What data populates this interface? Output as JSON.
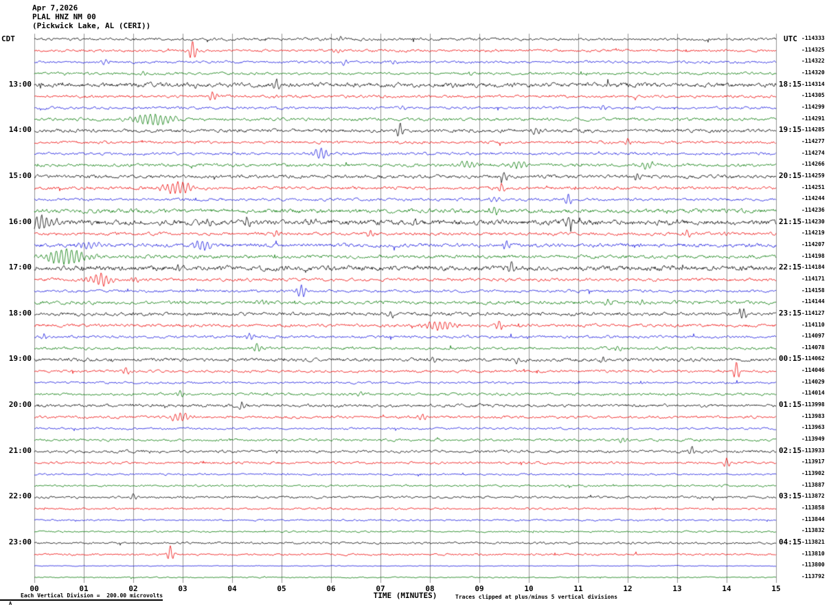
{
  "header": {
    "date": "Apr 7,2026",
    "station": "PLAL HNZ NM 00",
    "location": "(Pickwick Lake, AL (CERI))",
    "left_axis_label": "CDT",
    "right_axis_label": "UTC"
  },
  "footer": {
    "scale_note": "Each Vertical Division =  200.00 microvolts",
    "x_axis_title": "TIME (MINUTES)",
    "clip_note": "Traces clipped at plus/minus 5 vertical divisions",
    "corner_mark": "A"
  },
  "chart_data": {
    "type": "line",
    "subtype": "helicorder-seismogram",
    "xlabel": "TIME (MINUTES)",
    "x_range": [
      0,
      15
    ],
    "minutes_per_line": 15,
    "x_ticks": [
      "00",
      "01",
      "02",
      "03",
      "04",
      "05",
      "06",
      "07",
      "08",
      "09",
      "10",
      "11",
      "12",
      "13",
      "14",
      "15"
    ],
    "colors": {
      "background": "#ffffff",
      "grid": "#909090",
      "traces": [
        "#000000",
        "#ee0000",
        "#1414dd",
        "#007700"
      ]
    },
    "traces": [
      {
        "left_label": "",
        "right_time": "",
        "right_value": "-114333",
        "noise": 1.6,
        "events": [
          [
            6.2,
            3,
            0.06
          ],
          [
            9.0,
            2.5,
            0.05
          ]
        ]
      },
      {
        "left_label": "",
        "right_time": "",
        "right_value": "-114325",
        "noise": 1.5,
        "events": [
          [
            3.2,
            15,
            0.05
          ],
          [
            6.1,
            4,
            0.05
          ]
        ]
      },
      {
        "left_label": "",
        "right_time": "",
        "right_value": "-114322",
        "noise": 1.5,
        "events": [
          [
            1.45,
            4,
            0.06
          ],
          [
            6.3,
            4,
            0.06
          ],
          [
            7.3,
            3.5,
            0.05
          ]
        ]
      },
      {
        "left_label": "",
        "right_time": "",
        "right_value": "-114320",
        "noise": 1.5,
        "events": [
          [
            2.2,
            3.5,
            0.06
          ]
        ]
      },
      {
        "left_label": "13:00",
        "right_time": "18:15",
        "right_value": "-114314",
        "noise": 2.6,
        "events": [
          [
            3.3,
            3,
            0.05
          ],
          [
            4.9,
            9,
            0.05
          ],
          [
            8.5,
            3,
            0.08
          ]
        ]
      },
      {
        "left_label": "",
        "right_time": "",
        "right_value": "-114305",
        "noise": 1.6,
        "events": [
          [
            3.6,
            6,
            0.06
          ],
          [
            4.9,
            4,
            0.05
          ]
        ]
      },
      {
        "left_label": "",
        "right_time": "",
        "right_value": "-114299",
        "noise": 1.5,
        "events": [
          [
            7.45,
            4,
            0.05
          ],
          [
            11.5,
            4,
            0.05
          ]
        ]
      },
      {
        "left_label": "",
        "right_time": "",
        "right_value": "-114291",
        "noise": 1.8,
        "events": [
          [
            2.45,
            8,
            0.3
          ]
        ]
      },
      {
        "left_label": "14:00",
        "right_time": "19:15",
        "right_value": "-114285",
        "noise": 2.0,
        "events": [
          [
            7.4,
            11,
            0.05
          ],
          [
            10.15,
            4,
            0.06
          ]
        ]
      },
      {
        "left_label": "",
        "right_time": "",
        "right_value": "-114277",
        "noise": 1.6,
        "events": [
          [
            12.0,
            5,
            0.06
          ]
        ]
      },
      {
        "left_label": "",
        "right_time": "",
        "right_value": "-114274",
        "noise": 1.6,
        "events": [
          [
            5.8,
            8,
            0.12
          ]
        ]
      },
      {
        "left_label": "",
        "right_time": "",
        "right_value": "-114266",
        "noise": 1.8,
        "events": [
          [
            8.75,
            4.5,
            0.15
          ],
          [
            9.8,
            4.5,
            0.15
          ],
          [
            12.4,
            5,
            0.1
          ]
        ]
      },
      {
        "left_label": "15:00",
        "right_time": "20:15",
        "right_value": "-114259",
        "noise": 2.0,
        "events": [
          [
            9.5,
            7,
            0.06
          ],
          [
            12.2,
            6,
            0.05
          ]
        ]
      },
      {
        "left_label": "",
        "right_time": "",
        "right_value": "-114251",
        "noise": 1.8,
        "events": [
          [
            2.9,
            9,
            0.22
          ],
          [
            9.45,
            6,
            0.05
          ]
        ]
      },
      {
        "left_label": "",
        "right_time": "",
        "right_value": "-114244",
        "noise": 1.6,
        "events": [
          [
            9.3,
            5,
            0.06
          ],
          [
            10.8,
            8,
            0.05
          ]
        ]
      },
      {
        "left_label": "",
        "right_time": "",
        "right_value": "-114236",
        "noise": 2.4,
        "events": [
          [
            9.3,
            5,
            0.08
          ]
        ]
      },
      {
        "left_label": "16:00",
        "right_time": "21:15",
        "right_value": "-114230",
        "noise": 3.0,
        "events": [
          [
            0.15,
            10,
            0.18
          ],
          [
            3.5,
            5,
            0.06
          ],
          [
            4.3,
            6,
            0.05
          ],
          [
            5.6,
            4,
            0.05
          ],
          [
            7.7,
            4,
            0.06
          ],
          [
            10.8,
            7,
            0.06
          ],
          [
            13.0,
            3.5,
            0.06
          ]
        ]
      },
      {
        "left_label": "",
        "right_time": "",
        "right_value": "-114219",
        "noise": 1.8,
        "events": [
          [
            4.9,
            6,
            0.05
          ],
          [
            6.8,
            5,
            0.06
          ],
          [
            13.2,
            6,
            0.05
          ],
          [
            13.95,
            4,
            0.05
          ]
        ]
      },
      {
        "left_label": "",
        "right_time": "",
        "right_value": "-114207",
        "noise": 2.2,
        "events": [
          [
            1.1,
            5,
            0.18
          ],
          [
            3.4,
            7,
            0.12
          ],
          [
            9.55,
            6,
            0.05
          ]
        ]
      },
      {
        "left_label": "",
        "right_time": "",
        "right_value": "-114198",
        "noise": 2.0,
        "events": [
          [
            0.65,
            11,
            0.28
          ]
        ]
      },
      {
        "left_label": "17:00",
        "right_time": "22:15",
        "right_value": "-114184",
        "noise": 3.0,
        "events": [
          [
            2.9,
            4,
            0.08
          ],
          [
            9.65,
            8,
            0.05
          ]
        ]
      },
      {
        "left_label": "",
        "right_time": "",
        "right_value": "-114171",
        "noise": 1.8,
        "events": [
          [
            1.35,
            8,
            0.18
          ],
          [
            2.05,
            5,
            0.05
          ]
        ]
      },
      {
        "left_label": "",
        "right_time": "",
        "right_value": "-114158",
        "noise": 1.6,
        "events": [
          [
            5.4,
            9,
            0.08
          ]
        ]
      },
      {
        "left_label": "",
        "right_time": "",
        "right_value": "-114144",
        "noise": 2.0,
        "events": [
          [
            4.6,
            4,
            0.06
          ],
          [
            11.6,
            3.5,
            0.06
          ],
          [
            12.3,
            3.5,
            0.06
          ]
        ]
      },
      {
        "left_label": "18:00",
        "right_time": "23:15",
        "right_value": "-114127",
        "noise": 2.0,
        "events": [
          [
            7.2,
            4.5,
            0.06
          ],
          [
            14.35,
            7,
            0.05
          ]
        ]
      },
      {
        "left_label": "",
        "right_time": "",
        "right_value": "-114110",
        "noise": 1.8,
        "events": [
          [
            8.2,
            7,
            0.2
          ],
          [
            9.4,
            8,
            0.05
          ]
        ]
      },
      {
        "left_label": "",
        "right_time": "",
        "right_value": "-114097",
        "noise": 1.6,
        "events": [
          [
            0.2,
            4.5,
            0.06
          ],
          [
            4.35,
            5,
            0.06
          ]
        ]
      },
      {
        "left_label": "",
        "right_time": "",
        "right_value": "-114078",
        "noise": 1.6,
        "events": [
          [
            4.5,
            6,
            0.06
          ],
          [
            11.8,
            3.5,
            0.06
          ]
        ]
      },
      {
        "left_label": "19:00",
        "right_time": "00:15",
        "right_value": "-114062",
        "noise": 2.0,
        "events": [
          [
            8.05,
            4.5,
            0.06
          ],
          [
            9.8,
            5,
            0.06
          ],
          [
            11.5,
            4.5,
            0.05
          ]
        ]
      },
      {
        "left_label": "",
        "right_time": "",
        "right_value": "-114046",
        "noise": 1.5,
        "events": [
          [
            1.85,
            4.5,
            0.06
          ],
          [
            14.2,
            13,
            0.05
          ]
        ]
      },
      {
        "left_label": "",
        "right_time": "",
        "right_value": "-114029",
        "noise": 1.3,
        "events": []
      },
      {
        "left_label": "",
        "right_time": "",
        "right_value": "-114014",
        "noise": 1.5,
        "events": [
          [
            2.95,
            4.5,
            0.06
          ],
          [
            6.6,
            3.5,
            0.06
          ]
        ]
      },
      {
        "left_label": "20:00",
        "right_time": "01:15",
        "right_value": "-113998",
        "noise": 1.8,
        "events": [
          [
            4.2,
            6,
            0.05
          ]
        ]
      },
      {
        "left_label": "",
        "right_time": "",
        "right_value": "-113983",
        "noise": 1.5,
        "events": [
          [
            2.95,
            6,
            0.15
          ],
          [
            7.85,
            5,
            0.06
          ]
        ]
      },
      {
        "left_label": "",
        "right_time": "",
        "right_value": "-113963",
        "noise": 1.2,
        "events": []
      },
      {
        "left_label": "",
        "right_time": "",
        "right_value": "-113949",
        "noise": 1.4,
        "events": [
          [
            11.9,
            3.5,
            0.06
          ]
        ]
      },
      {
        "left_label": "21:00",
        "right_time": "02:15",
        "right_value": "-113933",
        "noise": 1.6,
        "events": [
          [
            13.3,
            7,
            0.05
          ]
        ]
      },
      {
        "left_label": "",
        "right_time": "",
        "right_value": "-113917",
        "noise": 1.4,
        "events": [
          [
            14.0,
            6,
            0.05
          ]
        ]
      },
      {
        "left_label": "",
        "right_time": "",
        "right_value": "-113902",
        "noise": 1.1,
        "events": []
      },
      {
        "left_label": "",
        "right_time": "",
        "right_value": "-113887",
        "noise": 1.2,
        "events": []
      },
      {
        "left_label": "22:00",
        "right_time": "03:15",
        "right_value": "-113872",
        "noise": 1.4,
        "events": [
          [
            2.0,
            4.5,
            0.05
          ]
        ]
      },
      {
        "left_label": "",
        "right_time": "",
        "right_value": "-113858",
        "noise": 1.2,
        "events": []
      },
      {
        "left_label": "",
        "right_time": "",
        "right_value": "-113844",
        "noise": 1.0,
        "events": []
      },
      {
        "left_label": "",
        "right_time": "",
        "right_value": "-113832",
        "noise": 1.0,
        "events": []
      },
      {
        "left_label": "23:00",
        "right_time": "04:15",
        "right_value": "-113821",
        "noise": 1.3,
        "events": []
      },
      {
        "left_label": "",
        "right_time": "",
        "right_value": "-113810",
        "noise": 1.2,
        "events": [
          [
            2.75,
            11,
            0.05
          ]
        ]
      },
      {
        "left_label": "",
        "right_time": "",
        "right_value": "-113800",
        "noise": 0.5,
        "events": []
      },
      {
        "left_label": "",
        "right_time": "",
        "right_value": "-113792",
        "noise": 0.7,
        "events": []
      }
    ]
  }
}
